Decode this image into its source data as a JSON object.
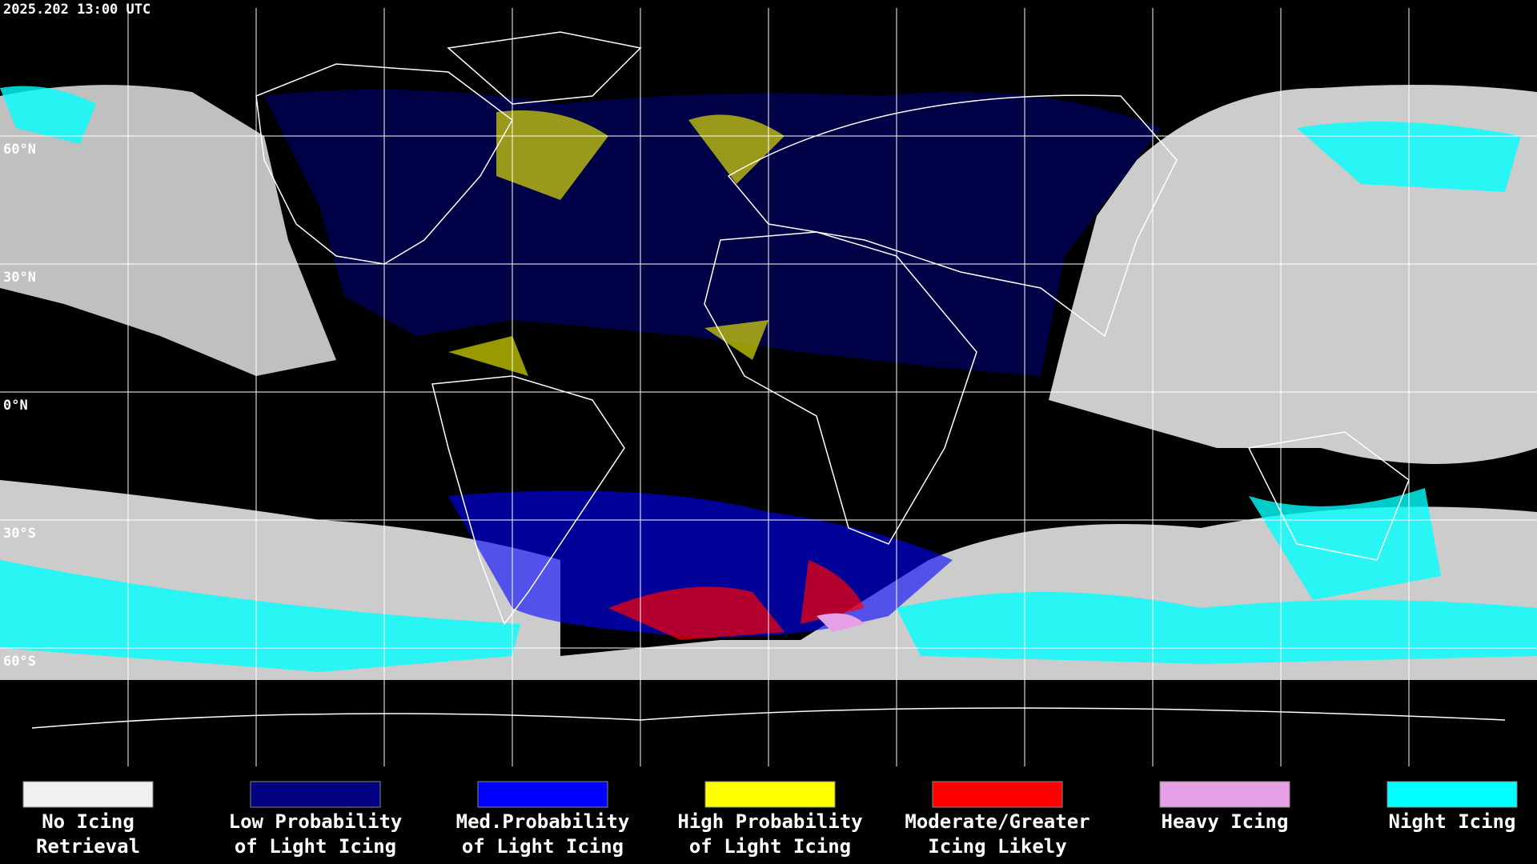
{
  "header": {
    "timestamp": "2025.202 13:00 UTC"
  },
  "latitude_labels": [
    "60°N",
    "30°N",
    "0°N",
    "30°S",
    "60°S"
  ],
  "legend": [
    {
      "lines": [
        "No Icing",
        "Retrieval"
      ],
      "color": "#f0f0f0"
    },
    {
      "lines": [
        "Low Probability",
        "of Light Icing"
      ],
      "color": "#000080"
    },
    {
      "lines": [
        "Med.Probability",
        "of Light Icing"
      ],
      "color": "#0000ff"
    },
    {
      "lines": [
        "High Probability",
        "of Light Icing"
      ],
      "color": "#ffff00"
    },
    {
      "lines": [
        "Moderate/Greater",
        "Icing Likely"
      ],
      "color": "#ff0000"
    },
    {
      "lines": [
        "Heavy Icing"
      ],
      "color": "#e6a0e6"
    },
    {
      "lines": [
        "Night Icing"
      ],
      "color": "#00ffff"
    }
  ]
}
